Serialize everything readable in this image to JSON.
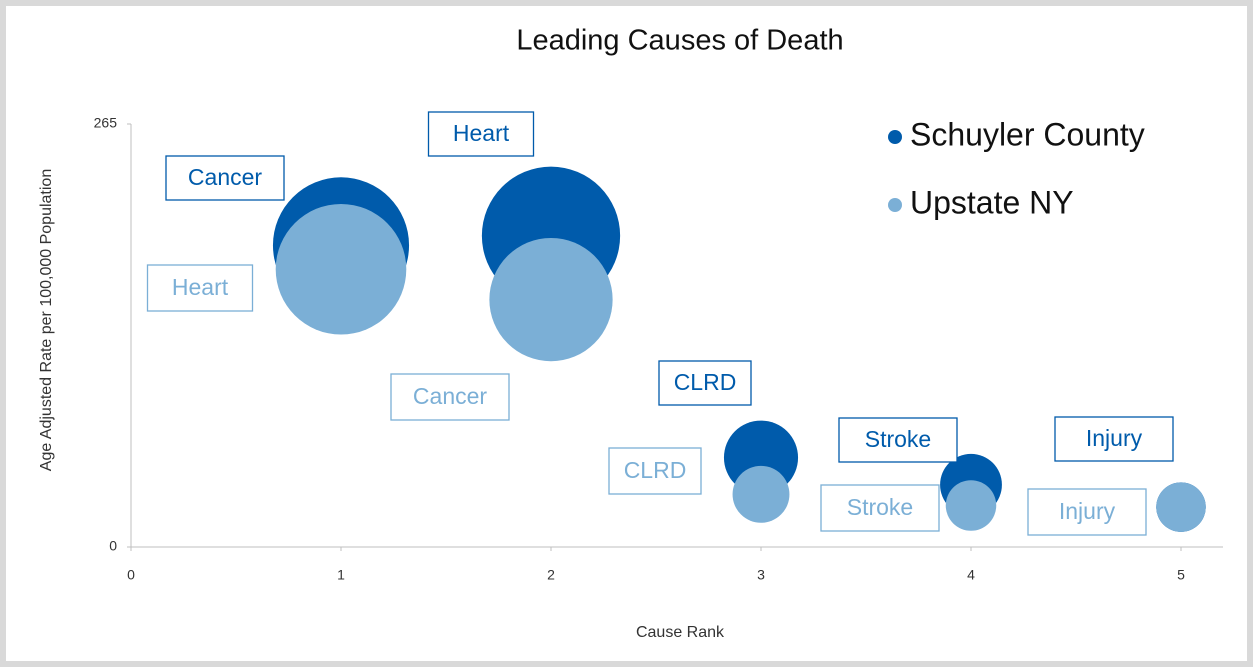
{
  "chart_data": {
    "type": "bubble",
    "title": "Leading Causes of Death",
    "x_label": "Cause Rank",
    "y_label": "Age Adjusted Rate per 100,000 Population",
    "xlim": [
      0,
      5.2
    ],
    "xticks": [
      0,
      1,
      2,
      3,
      4,
      5
    ],
    "ylim": [
      0,
      265
    ],
    "yticks": [
      0,
      265
    ],
    "grid": false,
    "legend": "upper right",
    "series": [
      {
        "name": "Schuyler County",
        "color": "#005bab",
        "x": [
          1,
          2,
          3,
          4,
          5
        ],
        "values": [
          189,
          195,
          56,
          39,
          25
        ],
        "sizes": [
          189,
          195,
          56,
          39,
          25
        ],
        "labels": [
          "Cancer",
          "Heart",
          "CLRD",
          "Stroke",
          "Injury"
        ]
      },
      {
        "name": "Upstate NY",
        "color": "#7bafd6",
        "x": [
          1,
          2,
          3,
          4,
          5
        ],
        "values": [
          174,
          155,
          33,
          26,
          25
        ],
        "sizes": [
          174,
          155,
          33,
          26,
          25
        ],
        "labels": [
          "Heart",
          "Cancer",
          "CLRD",
          "Stroke",
          "Injury"
        ]
      }
    ]
  }
}
